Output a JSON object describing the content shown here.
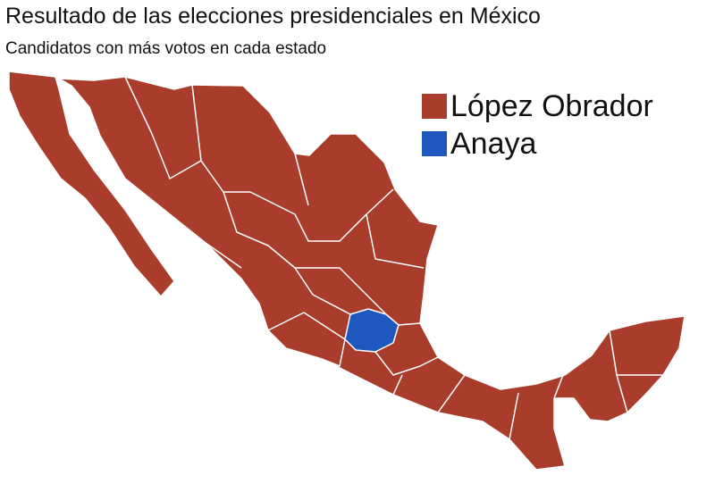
{
  "header": {
    "title": "Resultado de las elecciones presidenciales en México",
    "subtitle": "Candidatos con más votos en cada estado"
  },
  "legend": [
    {
      "label": "López Obrador",
      "color": "#a93c2a"
    },
    {
      "label": "Anaya",
      "color": "#1e57bd"
    }
  ],
  "map": {
    "default_winner": "López Obrador",
    "states_won_by_anaya": [],
    "border_color": "#ffffff"
  }
}
